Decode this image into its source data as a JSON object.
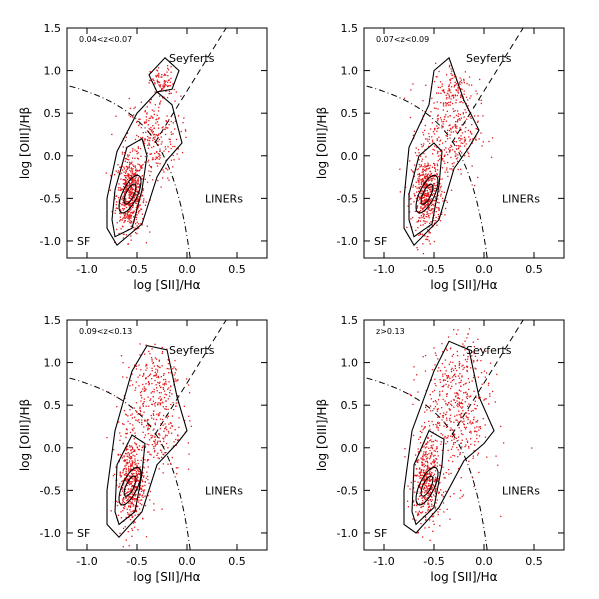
{
  "chart_data": [
    {
      "type": "scatter",
      "panel_label": "0.04<z<0.07",
      "xlabel": "log [SII]/Hα",
      "ylabel": "log [OIII]/Hβ",
      "xlim": [
        -1.2,
        0.8
      ],
      "ylim": [
        -1.2,
        1.5
      ],
      "x_ticks": [
        "-1.0",
        "-0.5",
        "0.0",
        "0.5"
      ],
      "y_ticks": [
        "-1.0",
        "-0.5",
        "0.0",
        "0.5",
        "1.0",
        "1.5"
      ],
      "regions": {
        "seyferts": "Seyferts",
        "liners": "LINERs",
        "sf": "SF"
      },
      "point_color": "#e41a1c",
      "density_centers": [
        {
          "x": -0.57,
          "y": -0.45,
          "sx": 0.07,
          "sy": 0.22,
          "w": 0.62
        },
        {
          "x": -0.35,
          "y": 0.2,
          "sx": 0.14,
          "sy": 0.25,
          "w": 0.28
        },
        {
          "x": -0.25,
          "y": 0.85,
          "sx": 0.06,
          "sy": 0.1,
          "w": 0.1
        }
      ],
      "contours": [
        [
          [
            -0.75,
            -0.75
          ],
          [
            -0.72,
            -0.95
          ],
          [
            -0.55,
            -0.85
          ],
          [
            -0.45,
            -0.4
          ],
          [
            -0.4,
            0.0
          ],
          [
            -0.45,
            0.2
          ],
          [
            -0.6,
            0.1
          ],
          [
            -0.72,
            -0.4
          ],
          [
            -0.75,
            -0.75
          ]
        ],
        [
          [
            -0.8,
            -0.85
          ],
          [
            -0.7,
            -1.05
          ],
          [
            -0.45,
            -0.8
          ],
          [
            -0.3,
            -0.25
          ],
          [
            -0.2,
            -0.05
          ],
          [
            -0.05,
            0.15
          ],
          [
            -0.15,
            0.6
          ],
          [
            -0.3,
            0.75
          ],
          [
            -0.5,
            0.5
          ],
          [
            -0.7,
            0.05
          ],
          [
            -0.8,
            -0.5
          ],
          [
            -0.8,
            -0.85
          ]
        ],
        [
          [
            -0.38,
            0.95
          ],
          [
            -0.22,
            1.15
          ],
          [
            -0.08,
            1.0
          ],
          [
            -0.15,
            0.78
          ],
          [
            -0.3,
            0.75
          ],
          [
            -0.38,
            0.95
          ]
        ]
      ],
      "demarcations": {
        "kewley": "dash-dot",
        "seyfert_liner": "dashed"
      }
    },
    {
      "type": "scatter",
      "panel_label": "0.07<z<0.09",
      "xlabel": "log [SII]/Hα",
      "ylabel": "log [OIII]/Hβ",
      "xlim": [
        -1.2,
        0.8
      ],
      "ylim": [
        -1.2,
        1.5
      ],
      "x_ticks": [
        "-1.0",
        "-0.5",
        "0.0",
        "0.5"
      ],
      "y_ticks": [
        "-1.0",
        "-0.5",
        "0.0",
        "0.5",
        "1.0",
        "1.5"
      ],
      "regions": {
        "seyferts": "Seyferts",
        "liners": "LINERs",
        "sf": "SF"
      },
      "point_color": "#e41a1c",
      "density_centers": [
        {
          "x": -0.58,
          "y": -0.45,
          "sx": 0.07,
          "sy": 0.22,
          "w": 0.55
        },
        {
          "x": -0.35,
          "y": 0.3,
          "sx": 0.15,
          "sy": 0.3,
          "w": 0.35
        },
        {
          "x": -0.3,
          "y": 0.8,
          "sx": 0.1,
          "sy": 0.15,
          "w": 0.1
        }
      ],
      "contours": [
        [
          [
            -0.75,
            -0.75
          ],
          [
            -0.7,
            -0.95
          ],
          [
            -0.52,
            -0.8
          ],
          [
            -0.45,
            -0.35
          ],
          [
            -0.42,
            0.05
          ],
          [
            -0.5,
            0.15
          ],
          [
            -0.65,
            0.0
          ],
          [
            -0.75,
            -0.45
          ],
          [
            -0.75,
            -0.75
          ]
        ],
        [
          [
            -0.8,
            -0.85
          ],
          [
            -0.7,
            -1.05
          ],
          [
            -0.45,
            -0.75
          ],
          [
            -0.3,
            -0.15
          ],
          [
            -0.15,
            0.1
          ],
          [
            -0.05,
            0.3
          ],
          [
            -0.2,
            0.65
          ],
          [
            -0.35,
            1.15
          ],
          [
            -0.5,
            1.0
          ],
          [
            -0.55,
            0.6
          ],
          [
            -0.75,
            0.1
          ],
          [
            -0.8,
            -0.5
          ],
          [
            -0.8,
            -0.85
          ]
        ]
      ],
      "demarcations": {
        "kewley": "dash-dot",
        "seyfert_liner": "dashed"
      }
    },
    {
      "type": "scatter",
      "panel_label": "0.09<z<0.13",
      "xlabel": "log [SII]/Hα",
      "ylabel": "log [OIII]/Hβ",
      "xlim": [
        -1.2,
        0.8
      ],
      "ylim": [
        -1.2,
        1.5
      ],
      "x_ticks": [
        "-1.0",
        "-0.5",
        "0.0",
        "0.5"
      ],
      "y_ticks": [
        "-1.0",
        "-0.5",
        "0.0",
        "0.5",
        "1.0",
        "1.5"
      ],
      "regions": {
        "seyferts": "Seyferts",
        "liners": "LINERs",
        "sf": "SF"
      },
      "point_color": "#e41a1c",
      "density_centers": [
        {
          "x": -0.57,
          "y": -0.4,
          "sx": 0.07,
          "sy": 0.25,
          "w": 0.5
        },
        {
          "x": -0.35,
          "y": 0.35,
          "sx": 0.15,
          "sy": 0.35,
          "w": 0.38
        },
        {
          "x": -0.3,
          "y": 0.85,
          "sx": 0.12,
          "sy": 0.18,
          "w": 0.12
        }
      ],
      "contours": [
        [
          [
            -0.72,
            -0.75
          ],
          [
            -0.68,
            -0.9
          ],
          [
            -0.52,
            -0.75
          ],
          [
            -0.45,
            -0.3
          ],
          [
            -0.42,
            0.05
          ],
          [
            -0.55,
            0.15
          ],
          [
            -0.7,
            -0.2
          ],
          [
            -0.72,
            -0.75
          ]
        ],
        [
          [
            -0.8,
            -0.9
          ],
          [
            -0.68,
            -1.05
          ],
          [
            -0.45,
            -0.75
          ],
          [
            -0.3,
            -0.2
          ],
          [
            -0.1,
            0.05
          ],
          [
            0.0,
            0.2
          ],
          [
            -0.1,
            0.6
          ],
          [
            -0.2,
            1.15
          ],
          [
            -0.4,
            1.2
          ],
          [
            -0.55,
            0.9
          ],
          [
            -0.72,
            0.2
          ],
          [
            -0.8,
            -0.5
          ],
          [
            -0.8,
            -0.9
          ]
        ]
      ],
      "demarcations": {
        "kewley": "dash-dot",
        "seyfert_liner": "dashed"
      }
    },
    {
      "type": "scatter",
      "panel_label": "z>0.13",
      "xlabel": "log [SII]/Hα",
      "ylabel": "log [OIII]/Hβ",
      "xlim": [
        -1.2,
        0.8
      ],
      "ylim": [
        -1.2,
        1.5
      ],
      "x_ticks": [
        "-1.0",
        "-0.5",
        "0.0",
        "0.5"
      ],
      "y_ticks": [
        "-1.0",
        "-0.5",
        "0.0",
        "0.5",
        "1.0",
        "1.5"
      ],
      "regions": {
        "seyferts": "Seyferts",
        "liners": "LINERs",
        "sf": "SF"
      },
      "point_color": "#e41a1c",
      "density_centers": [
        {
          "x": -0.57,
          "y": -0.4,
          "sx": 0.07,
          "sy": 0.25,
          "w": 0.45
        },
        {
          "x": -0.3,
          "y": 0.35,
          "sx": 0.18,
          "sy": 0.38,
          "w": 0.43
        },
        {
          "x": -0.25,
          "y": 0.9,
          "sx": 0.12,
          "sy": 0.2,
          "w": 0.12
        }
      ],
      "contours": [
        [
          [
            -0.72,
            -0.75
          ],
          [
            -0.68,
            -0.9
          ],
          [
            -0.5,
            -0.7
          ],
          [
            -0.42,
            -0.2
          ],
          [
            -0.4,
            0.1
          ],
          [
            -0.55,
            0.2
          ],
          [
            -0.7,
            -0.2
          ],
          [
            -0.72,
            -0.75
          ]
        ],
        [
          [
            -0.8,
            -0.9
          ],
          [
            -0.68,
            -1.0
          ],
          [
            -0.45,
            -0.7
          ],
          [
            -0.2,
            -0.15
          ],
          [
            0.0,
            0.05
          ],
          [
            0.1,
            0.2
          ],
          [
            -0.05,
            0.6
          ],
          [
            -0.15,
            1.15
          ],
          [
            -0.35,
            1.25
          ],
          [
            -0.5,
            0.9
          ],
          [
            -0.72,
            0.2
          ],
          [
            -0.8,
            -0.5
          ],
          [
            -0.8,
            -0.9
          ]
        ]
      ],
      "demarcations": {
        "kewley": "dash-dot",
        "seyfert_liner": "dashed"
      }
    }
  ]
}
